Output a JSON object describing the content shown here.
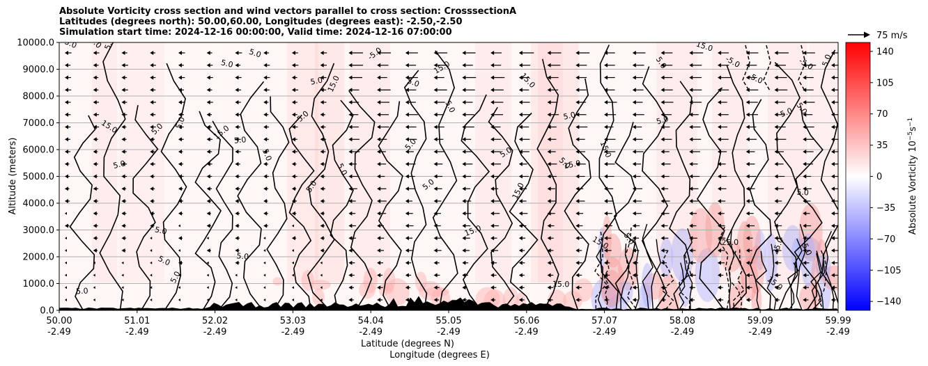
{
  "title": {
    "line1": "Absolute Vorticity cross section and wind vectors parallel to cross section: CrosssectionA",
    "line2": "Latitudes (degrees north): 50.00,60.00, Longitudes (degrees east): -2.50,-2.50",
    "line3": "Simulation start time: 2024-12-16 00:00:00, Valid time: 2024-12-16 07:00:00"
  },
  "chart_data": {
    "type": "heatmap",
    "ylabel": "Altitude (meters)",
    "xlabel_line1": "Latitude (degrees N)",
    "xlabel_line2": "Longitude (degrees E)",
    "ylim": [
      0,
      10000
    ],
    "xlim": [
      50.0,
      59.99
    ],
    "y_ticks": [
      "0.0",
      "1000.0",
      "2000.0",
      "3000.0",
      "4000.0",
      "5000.0",
      "6000.0",
      "7000.0",
      "8000.0",
      "9000.0",
      "10000.0"
    ],
    "x_ticks_lat": [
      "50.00",
      "51.01",
      "52.02",
      "53.03",
      "54.04",
      "55.05",
      "56.06",
      "57.07",
      "58.08",
      "59.09",
      "59.99"
    ],
    "x_ticks_lon": [
      "-2.49",
      "-2.49",
      "-2.49",
      "-2.49",
      "-2.49",
      "-2.49",
      "-2.49",
      "-2.49",
      "-2.49",
      "-2.49",
      "-2.49"
    ],
    "grid": "horizontal",
    "colorbar": {
      "label": "Absolute Vorticity 10",
      "label_sup": "−5",
      "label_unit": "s",
      "label_unit_sup": "−1",
      "ticks": [
        "140",
        "105",
        "70",
        "35",
        "0",
        "−35",
        "−70",
        "−105",
        "−140"
      ],
      "range": [
        -150,
        150
      ],
      "colormap": "bwr"
    },
    "vector_key": {
      "label": "75 m/s"
    },
    "contour_labels": [
      "5.0",
      "15.0",
      "25.0",
      "-5.0"
    ]
  }
}
